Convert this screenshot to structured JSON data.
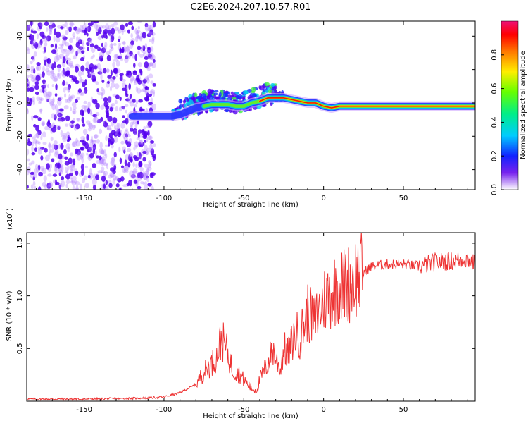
{
  "title": "C2E6.2024.207.10.57.R01",
  "colors": {
    "snr_line": "#ee3333",
    "scatter": "#5500ee"
  },
  "colorbar": {
    "label": "Normalized spectral amplitude",
    "ticks": [
      0.0,
      0.2,
      0.4,
      0.6,
      0.8
    ],
    "tick_labels": [
      "0.0",
      "0.2",
      "0.4",
      "0.6",
      "0.8"
    ],
    "range": [
      0,
      1
    ]
  },
  "chart_data": [
    {
      "type": "heatmap",
      "name": "spectrogram",
      "xlabel": "Height of straight line (km)",
      "ylabel": "Frequency (Hz)",
      "xlim": [
        -186,
        95
      ],
      "ylim": [
        -52,
        49
      ],
      "xticks": [
        -150,
        -100,
        -50,
        0,
        50
      ],
      "xtick_labels": [
        "-150",
        "-100",
        "-50",
        "0",
        "50"
      ],
      "yticks": [
        -40,
        -20,
        0,
        20,
        40
      ],
      "ytick_labels": [
        "-40",
        "-20",
        "0",
        "20",
        "40"
      ],
      "ridge": {
        "x": [
          -120,
          -110,
          -100,
          -95,
          -90,
          -85,
          -80,
          -75,
          -70,
          -65,
          -60,
          -55,
          -50,
          -45,
          -40,
          -35,
          -30,
          -25,
          -20,
          -15,
          -10,
          -5,
          0,
          5,
          10,
          20,
          40,
          60,
          80,
          95
        ],
        "frequency": [
          -8,
          -8,
          -8,
          -8,
          -7,
          -5,
          -3,
          -2,
          -1,
          -1,
          -1,
          -2,
          -2,
          0,
          1,
          3,
          3,
          3,
          2,
          1,
          0,
          0,
          -2,
          -3,
          -2,
          -2,
          -2,
          -2,
          -2,
          -2
        ]
      },
      "noise_region_x": [
        -186,
        -106
      ]
    },
    {
      "type": "line",
      "name": "snr",
      "xlabel": "Height of straight line (km)",
      "ylabel": "SNR (10 * v/v)",
      "scale_label": "(x10",
      "scale_exponent": "4",
      "scale_close": ")",
      "xlim": [
        -186,
        95
      ],
      "ylim": [
        0,
        1.6
      ],
      "xticks": [
        -150,
        -100,
        -50,
        0,
        50
      ],
      "xtick_labels": [
        "-150",
        "-100",
        "-50",
        "0",
        "50"
      ],
      "yticks": [
        0.5,
        1.0,
        1.5
      ],
      "ytick_labels": [
        "0.5",
        "1.0",
        "1.5"
      ],
      "x": [
        -186,
        -150,
        -110,
        -100,
        -95,
        -90,
        -85,
        -80,
        -75,
        -70,
        -67,
        -64,
        -60,
        -57,
        -55,
        -52,
        -50,
        -47,
        -45,
        -42,
        -40,
        -37,
        -35,
        -32,
        -30,
        -27,
        -25,
        -22,
        -20,
        -17,
        -15,
        -12,
        -10,
        -8,
        -6,
        -4,
        -2,
        0,
        2,
        4,
        6,
        8,
        10,
        12,
        14,
        16,
        18,
        20,
        25,
        30,
        40,
        50,
        60,
        70,
        80,
        90,
        95
      ],
      "values": [
        0.02,
        0.02,
        0.03,
        0.04,
        0.06,
        0.08,
        0.12,
        0.16,
        0.28,
        0.36,
        0.42,
        0.6,
        0.45,
        0.3,
        0.28,
        0.25,
        0.2,
        0.15,
        0.12,
        0.1,
        0.2,
        0.3,
        0.35,
        0.5,
        0.4,
        0.3,
        0.5,
        0.45,
        0.55,
        0.65,
        0.6,
        0.75,
        0.85,
        0.8,
        0.75,
        0.82,
        0.88,
        0.95,
        1.0,
        1.02,
        1.05,
        1.08,
        1.1,
        1.08,
        1.12,
        1.12,
        1.15,
        1.18,
        1.22,
        1.28,
        1.3,
        1.3,
        1.28,
        1.32,
        1.33,
        1.35,
        1.3
      ]
    }
  ]
}
